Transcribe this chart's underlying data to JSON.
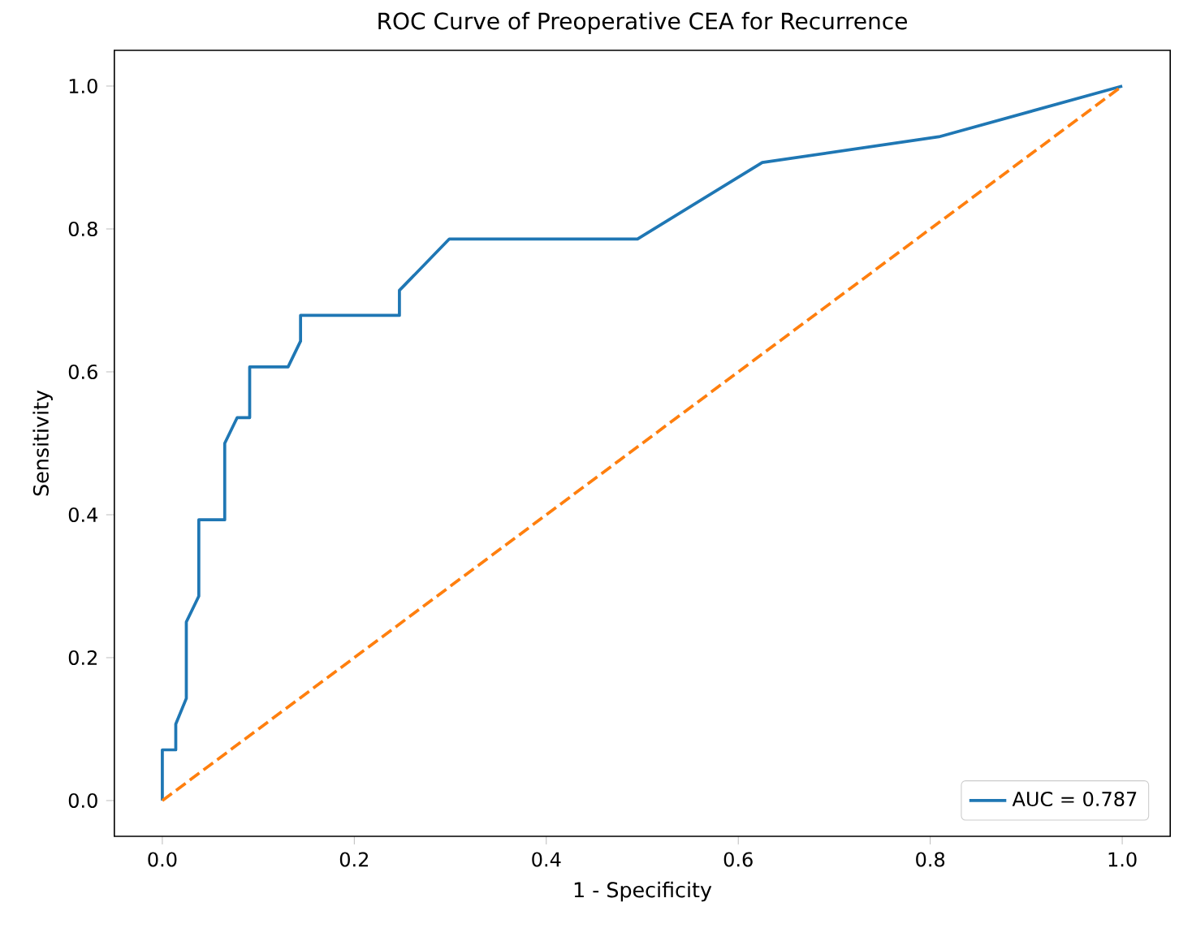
{
  "chart_data": {
    "type": "line",
    "title": "ROC Curve of Preoperative CEA for Recurrence",
    "xlabel": "1 - Specificity",
    "ylabel": "Sensitivity",
    "xlim": [
      -0.05,
      1.05
    ],
    "ylim": [
      -0.05,
      1.05
    ],
    "xticks": [
      {
        "value": 0,
        "label": "0.0"
      },
      {
        "value": 0.2,
        "label": "0.2"
      },
      {
        "value": 0.4,
        "label": "0.4"
      },
      {
        "value": 0.6,
        "label": "0.6"
      },
      {
        "value": 0.8,
        "label": "0.8"
      },
      {
        "value": 1,
        "label": "1.0"
      }
    ],
    "yticks": [
      {
        "value": 0,
        "label": "0.0"
      },
      {
        "value": 0.2,
        "label": "0.2"
      },
      {
        "value": 0.4,
        "label": "0.4"
      },
      {
        "value": 0.6,
        "label": "0.6"
      },
      {
        "value": 0.8,
        "label": "0.8"
      },
      {
        "value": 1,
        "label": "1.0"
      }
    ],
    "legend": "bottom right",
    "grid": false,
    "series": [
      {
        "name": "AUC = 0.787",
        "color": "#1f77b4",
        "line_style": "solid",
        "x": [
          0,
          0,
          0.014,
          0.014,
          0.025,
          0.025,
          0.038,
          0.038,
          0.065,
          0.065,
          0.078,
          0.091,
          0.091,
          0.131,
          0.144,
          0.144,
          0.247,
          0.247,
          0.299,
          0.495,
          0.625,
          0.809,
          1
        ],
        "values": [
          0,
          0.071,
          0.071,
          0.107,
          0.143,
          0.25,
          0.286,
          0.393,
          0.393,
          0.5,
          0.536,
          0.536,
          0.607,
          0.607,
          0.643,
          0.679,
          0.679,
          0.714,
          0.786,
          0.786,
          0.893,
          0.929,
          1
        ]
      },
      {
        "color": "#ff7f0e",
        "line_style": "dashed",
        "x": [
          0,
          1
        ],
        "values": [
          0,
          1
        ]
      }
    ]
  }
}
